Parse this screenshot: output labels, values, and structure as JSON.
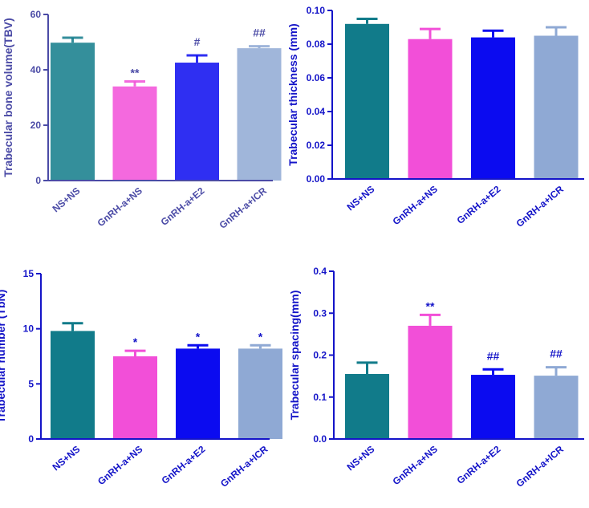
{
  "chart_data": [
    {
      "type": "bar",
      "title": "",
      "xlabel": "",
      "ylabel": "Trabecular bone volume(TBV)",
      "categories": [
        "NS+NS",
        "GnRH-a+NS",
        "GnRH-a+E2",
        "GnRH-a+ICR"
      ],
      "values": [
        49.8,
        34.0,
        42.6,
        47.8
      ],
      "errors": [
        1.8,
        1.8,
        2.6,
        0.7
      ],
      "annotations": [
        "",
        "**",
        "#",
        "##"
      ],
      "ylim": [
        0,
        60
      ],
      "yticks": [
        "0",
        "20",
        "40",
        "60"
      ],
      "ytick_values": [
        0,
        20,
        40,
        60
      ],
      "style": "faded"
    },
    {
      "type": "bar",
      "title": "",
      "xlabel": "",
      "ylabel": "Trabecular thickness (mm)",
      "categories": [
        "NS+NS",
        "GnRH-a+NS",
        "GnRH-a+E2",
        "GnRH-a+ICR"
      ],
      "values": [
        0.092,
        0.083,
        0.084,
        0.085
      ],
      "errors": [
        0.003,
        0.006,
        0.004,
        0.005
      ],
      "annotations": [
        "",
        "",
        "",
        ""
      ],
      "ylim": [
        0,
        0.1
      ],
      "yticks": [
        "0.00",
        "0.02",
        "0.04",
        "0.06",
        "0.08",
        "0.10"
      ],
      "ytick_values": [
        0,
        0.02,
        0.04,
        0.06,
        0.08,
        0.1
      ],
      "style": "normal"
    },
    {
      "type": "bar",
      "title": "",
      "xlabel": "",
      "ylabel": "Trabecular number (TbN)",
      "categories": [
        "NS+NS",
        "GnRH-a+NS",
        "GnRH-a+E2",
        "GnRH-a+ICR"
      ],
      "values": [
        9.8,
        7.5,
        8.2,
        8.2
      ],
      "errors": [
        0.7,
        0.5,
        0.3,
        0.3
      ],
      "annotations": [
        "",
        "*",
        "*",
        "*"
      ],
      "ylim": [
        0,
        15
      ],
      "yticks": [
        "0",
        "5",
        "10",
        "15"
      ],
      "ytick_values": [
        0,
        5,
        10,
        15
      ],
      "style": "normal"
    },
    {
      "type": "bar",
      "title": "",
      "xlabel": "",
      "ylabel": "Trabecular spacing(mm)",
      "categories": [
        "NS+NS",
        "GnRH-a+NS",
        "GnRH-a+E2",
        "GnRH-a+ICR"
      ],
      "values": [
        0.155,
        0.27,
        0.153,
        0.151
      ],
      "errors": [
        0.027,
        0.026,
        0.013,
        0.02
      ],
      "annotations": [
        "",
        "**",
        "##",
        "##"
      ],
      "ylim": [
        0,
        0.4
      ],
      "yticks": [
        "0.0",
        "0.1",
        "0.2",
        "0.3",
        "0.4"
      ],
      "ytick_values": [
        0,
        0.1,
        0.2,
        0.3,
        0.4
      ],
      "style": "normal"
    }
  ],
  "colors": {
    "bars": [
      "#117b8a",
      "#f24fd8",
      "#0b0bf0",
      "#8fa9d4"
    ],
    "axis": "#1414c8",
    "axis_faded": "#4b4ba6"
  }
}
